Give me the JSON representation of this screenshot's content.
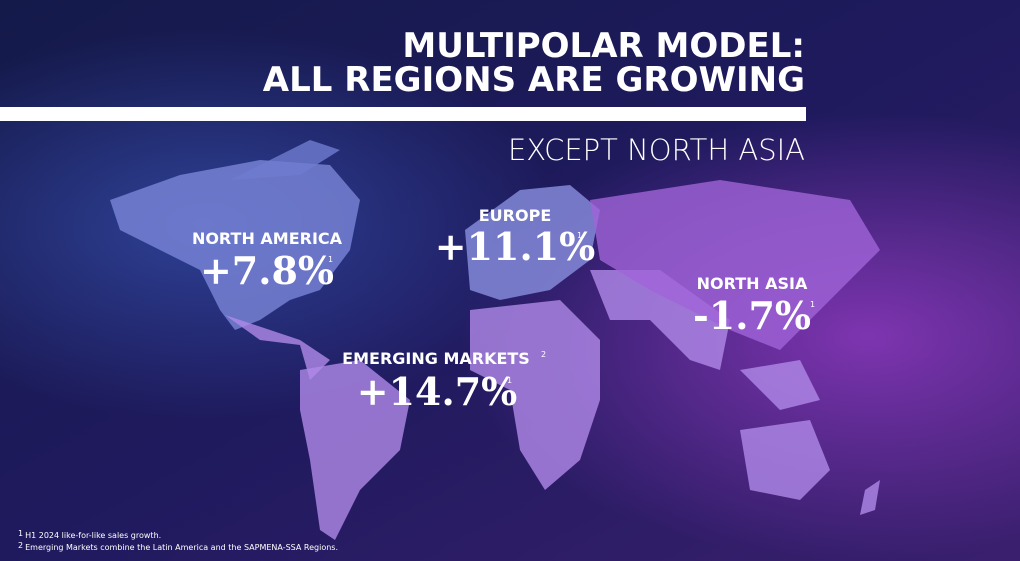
{
  "title": [
    "MULTIPOLAR MODEL:",
    "ALL REGIONS ARE GROWING"
  ],
  "subtitle": "EXCEPT NORTH ASIA",
  "regions": [
    {
      "name": "NORTH AMERICA",
      "value": "+7.8%",
      "note": "1"
    },
    {
      "name": "EUROPE",
      "value": "+11.1%",
      "note": "1"
    },
    {
      "name": "NORTH ASIA",
      "value": "-1.7%",
      "note": "1"
    },
    {
      "name": "EMERGING MARKETS",
      "name_note": "2",
      "value": "+14.7%",
      "note": "1"
    }
  ],
  "footnotes": [
    {
      "marker": "1",
      "text": "H1 2024 like-for-like sales growth."
    },
    {
      "marker": "2",
      "text": "Emerging Markets combine the Latin America and the SAPMENA-SSA Regions."
    }
  ]
}
